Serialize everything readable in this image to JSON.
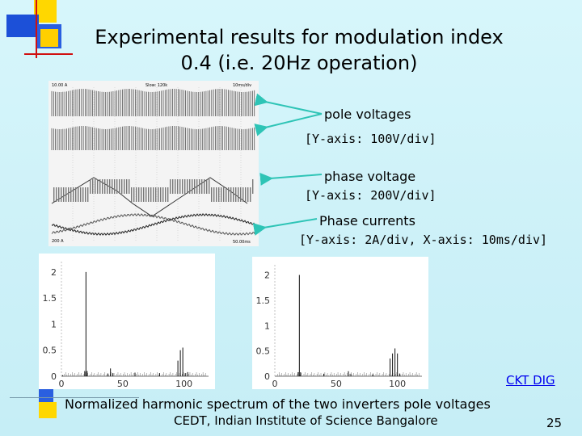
{
  "slide": {
    "title_line1": "Experimental results for modulation index",
    "title_line2": "0.4 (i.e. 20Hz operation)",
    "annotations": {
      "pole_voltages": "pole voltages",
      "pole_voltages_axis": "[Y-axis: 100V/div]",
      "phase_voltage": "phase voltage",
      "phase_voltage_axis": "[Y-axis: 200V/div]",
      "phase_currents": "Phase currents",
      "phase_currents_axis": "[Y-axis: 2A/div, X-axis: 10ms/div]"
    },
    "link_label": "CKT DIG",
    "caption": "Normalized harmonic spectrum of the two inverters pole voltages",
    "footer": "CEDT, Indian Institute of Science Bangalore",
    "page_number": "25"
  },
  "oscilloscope": {
    "header_left": "10.00 A",
    "header_mid": "Slow: 120k",
    "header_right": "10ms/div",
    "footer_left": "200 A",
    "footer_right": "50.00ms"
  },
  "chart_data": [
    {
      "type": "bar",
      "x_ticks": [
        "0",
        "50",
        "100"
      ],
      "y_ticks": [
        "0",
        "0.5",
        "1",
        "1.5",
        "2"
      ],
      "xlim": [
        0,
        120
      ],
      "ylim": [
        0,
        2.2
      ],
      "bars": [
        {
          "x": 20,
          "y": 2.0
        },
        {
          "x": 1,
          "y": 0.02
        },
        {
          "x": 19,
          "y": 0.1
        },
        {
          "x": 21,
          "y": 0.1
        },
        {
          "x": 38,
          "y": 0.05
        },
        {
          "x": 40,
          "y": 0.15
        },
        {
          "x": 42,
          "y": 0.06
        },
        {
          "x": 60,
          "y": 0.07
        },
        {
          "x": 80,
          "y": 0.06
        },
        {
          "x": 95,
          "y": 0.3
        },
        {
          "x": 97,
          "y": 0.5
        },
        {
          "x": 99,
          "y": 0.55
        },
        {
          "x": 101,
          "y": 0.06
        },
        {
          "x": 103,
          "y": 0.08
        }
      ]
    },
    {
      "type": "bar",
      "x_ticks": [
        "0",
        "50",
        "100"
      ],
      "y_ticks": [
        "0",
        "0.5",
        "1",
        "1.5",
        "2"
      ],
      "xlim": [
        0,
        120
      ],
      "ylim": [
        0,
        2.2
      ],
      "bars": [
        {
          "x": 20,
          "y": 2.0
        },
        {
          "x": 19,
          "y": 0.08
        },
        {
          "x": 21,
          "y": 0.08
        },
        {
          "x": 40,
          "y": 0.05
        },
        {
          "x": 60,
          "y": 0.1
        },
        {
          "x": 62,
          "y": 0.05
        },
        {
          "x": 80,
          "y": 0.04
        },
        {
          "x": 94,
          "y": 0.35
        },
        {
          "x": 96,
          "y": 0.45
        },
        {
          "x": 98,
          "y": 0.55
        },
        {
          "x": 100,
          "y": 0.45
        },
        {
          "x": 102,
          "y": 0.05
        }
      ]
    }
  ]
}
